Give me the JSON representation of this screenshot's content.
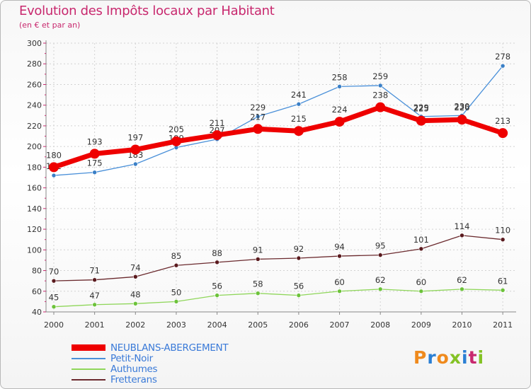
{
  "title": "Evolution des Impôts locaux par Habitant",
  "subtitle": "(en € et par an)",
  "logo": {
    "text": "Proxiti",
    "colors": [
      "#ef8a1d",
      "#2a7fd4",
      "#ef8a1d",
      "#84c225",
      "#2a7fd4",
      "#c8286e",
      "#84c225"
    ]
  },
  "colors": {
    "title": "#c8286e",
    "legend_text": "#3a7ad8",
    "axis": "#888888",
    "grid": "#d2d2d2"
  },
  "chart_data": {
    "type": "line",
    "x": [
      "2000",
      "2001",
      "2002",
      "2003",
      "2004",
      "2005",
      "2006",
      "2007",
      "2008",
      "2009",
      "2010",
      "2011"
    ],
    "ylim": [
      40,
      300
    ],
    "yticks": [
      40,
      60,
      80,
      100,
      120,
      140,
      160,
      180,
      200,
      220,
      240,
      260,
      280,
      300
    ],
    "grid": true,
    "legend_position": "bottom-left",
    "series": [
      {
        "name": "Petit-Noir",
        "color": "#4a90d9",
        "dot": "#3a7fc6",
        "width": 1,
        "values": [
          172,
          175,
          183,
          199,
          207,
          229,
          241,
          258,
          259,
          229,
          230,
          278
        ],
        "labels": [
          "172",
          "175",
          "183",
          "199",
          "207",
          "229",
          "241",
          "258",
          "259",
          "229",
          "230",
          "278"
        ]
      },
      {
        "name": "Fretterans",
        "color": "#6b2a2e",
        "dot": "#5a1a1e",
        "width": 1,
        "values": [
          70,
          71,
          74,
          85,
          88,
          91,
          92,
          94,
          95,
          101,
          114,
          110
        ],
        "labels": [
          "70",
          "71",
          "74",
          "85",
          "88",
          "91",
          "92",
          "94",
          "95",
          "101",
          "114",
          "110"
        ]
      },
      {
        "name": "Authumes",
        "color": "#8fd65a",
        "dot": "#6cc23a",
        "width": 1,
        "values": [
          45,
          47,
          48,
          50,
          56,
          58,
          56,
          60,
          62,
          60,
          62,
          61
        ],
        "labels": [
          "45",
          "47",
          "48",
          "50",
          "56",
          "58",
          "56",
          "60",
          "62",
          "60",
          "62",
          "61"
        ]
      },
      {
        "name": "NEUBLANS-ABERGEMENT",
        "color": "#ee0000",
        "dot": "#ee0000",
        "width": 7,
        "values": [
          180,
          193,
          197,
          205,
          211,
          217,
          215,
          224,
          238,
          225,
          226,
          213
        ],
        "labels": [
          "180",
          "193",
          "197",
          "205",
          "211",
          "217",
          "215",
          "224",
          "238",
          "225",
          "226",
          "213"
        ]
      }
    ],
    "legend": [
      "NEUBLANS-ABERGEMENT",
      "Petit-Noir",
      "Authumes",
      "Fretterans"
    ]
  }
}
